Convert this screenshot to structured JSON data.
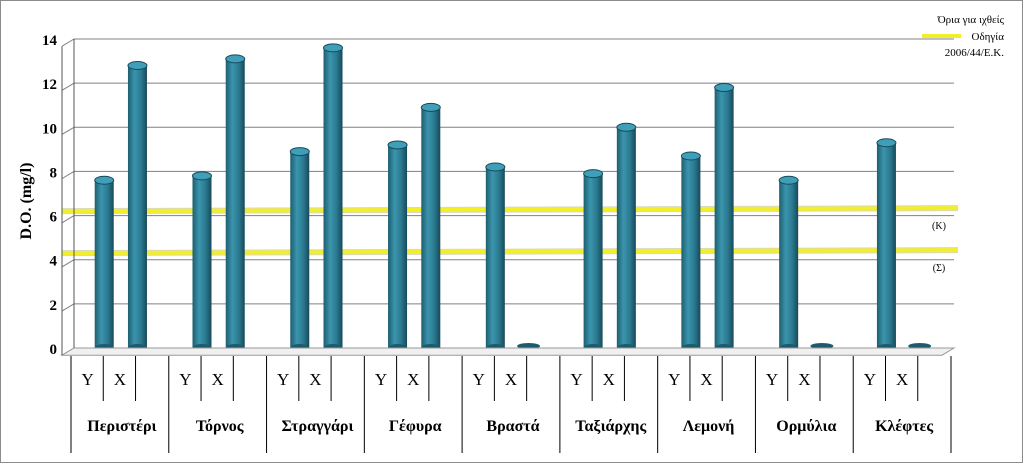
{
  "chart_data": {
    "type": "bar",
    "ylabel": "D.O. (mg/l)",
    "ylim": [
      0,
      14
    ],
    "yticks": [
      "0",
      "2",
      "4",
      "6",
      "8",
      "10",
      "12",
      "14"
    ],
    "grid": true,
    "sub_labels": [
      "Υ",
      "Χ"
    ],
    "categories": [
      "Περιστέρι",
      "Τόρνος",
      "Στραγγάρι",
      "Γέφυρα",
      "Βραστά",
      "Ταξιάρχης",
      "Λεμονή",
      "Ορμύλια",
      "Κλέφτες"
    ],
    "series": [
      {
        "name": "Υ",
        "values": [
          7.6,
          7.8,
          8.9,
          9.2,
          8.2,
          7.9,
          8.7,
          7.6,
          9.3
        ]
      },
      {
        "name": "Χ",
        "values": [
          12.8,
          13.1,
          13.6,
          10.9,
          0,
          10.0,
          11.8,
          0,
          0
        ]
      }
    ],
    "legend": {
      "title": "Όρια για ιχθείς",
      "entry": "Οδηγία",
      "entry2": "2006/44/Ε.Κ.",
      "position": "top-right"
    },
    "thresholds": [
      {
        "label": "(Κ)",
        "value": 6.2
      },
      {
        "label": "(Σ)",
        "value": 4.3
      }
    ],
    "colors": {
      "bar": "#2e7f96",
      "bar_dark": "#1d5b6c",
      "threshold": "#f2ef2a",
      "grid": "#808080"
    }
  }
}
